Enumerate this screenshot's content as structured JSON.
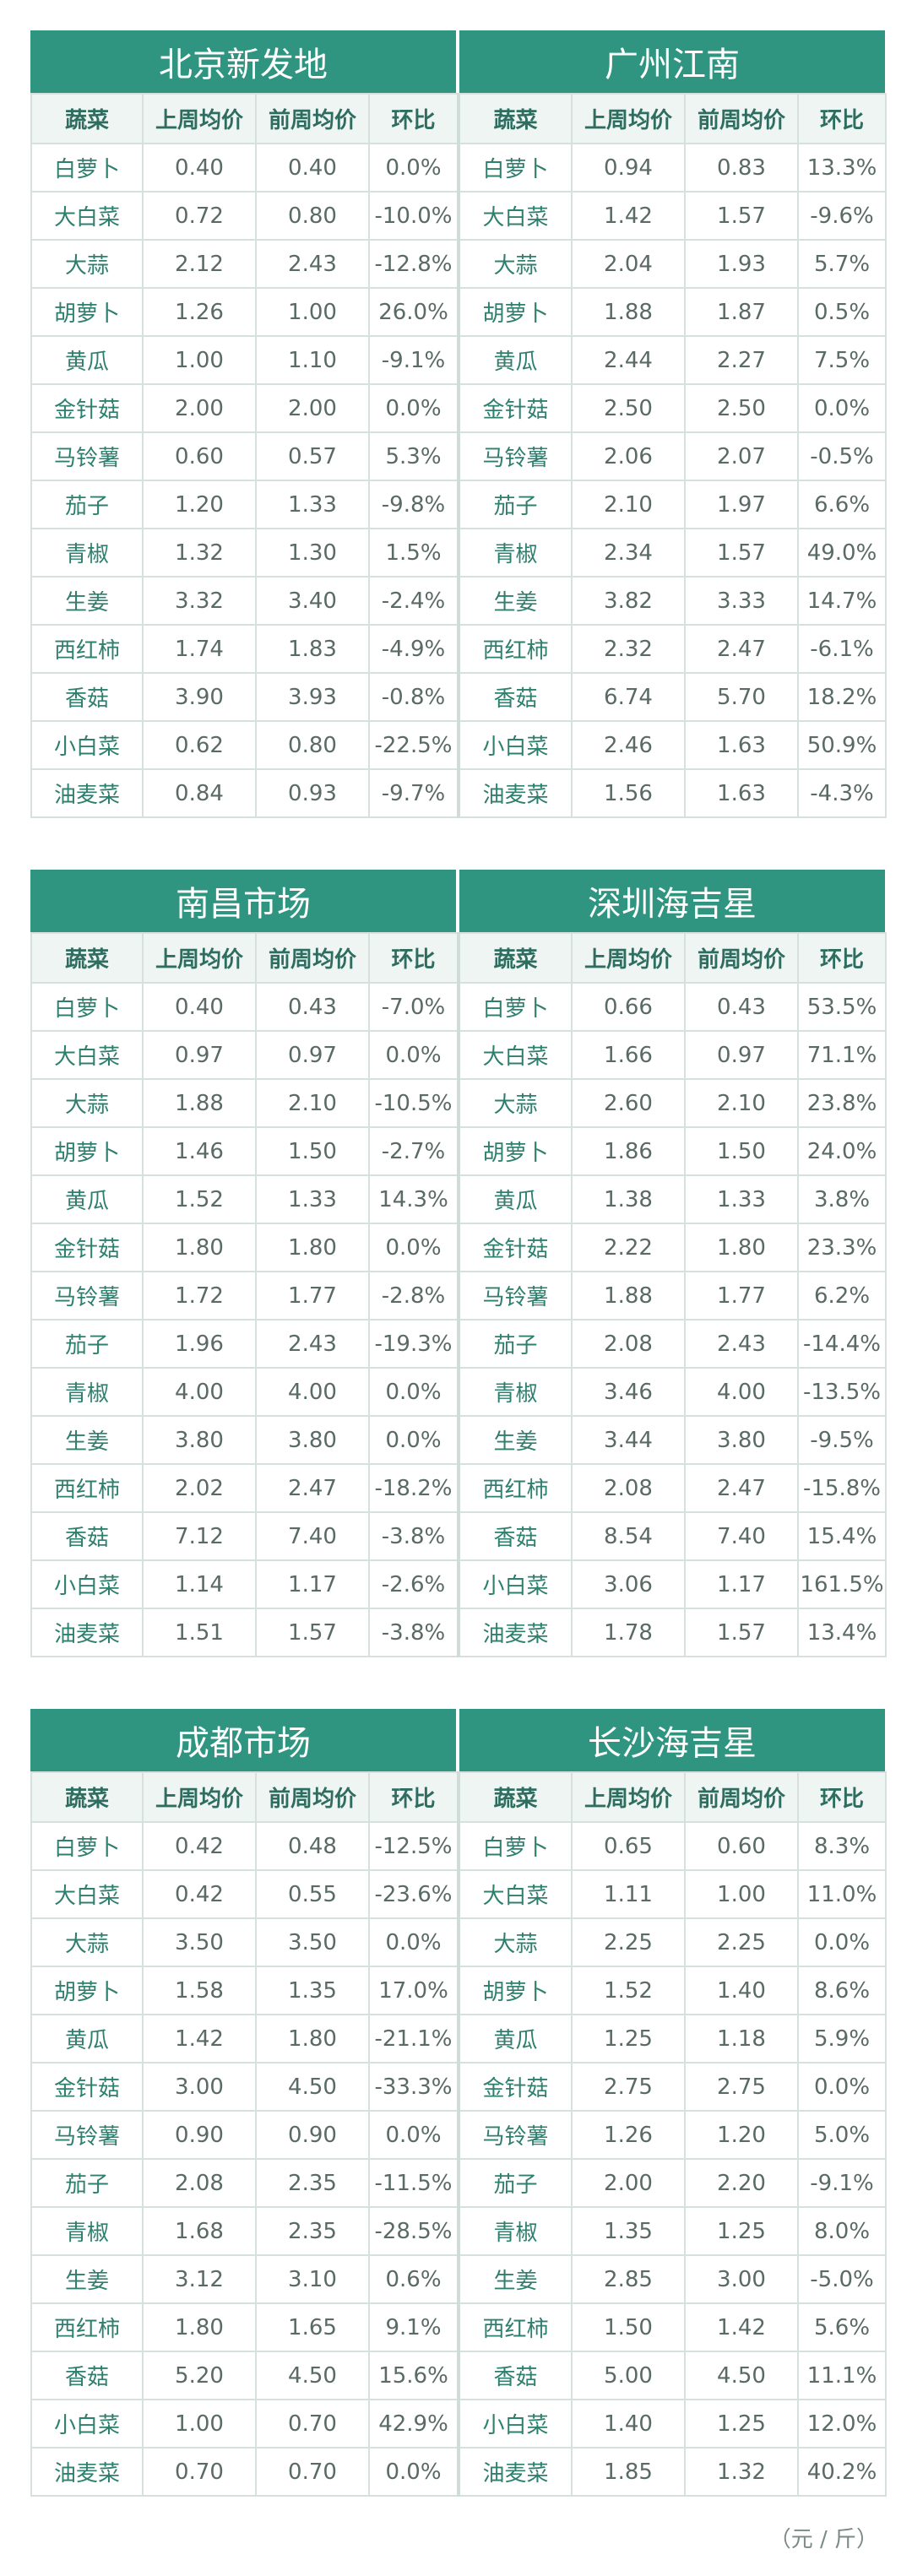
{
  "columns": [
    "蔬菜",
    "上周均价",
    "前周均价",
    "环比"
  ],
  "sections": [
    {
      "left": {
        "market": "北京新发地",
        "rows": [
          [
            "白萝卜",
            "0.40",
            "0.40",
            "0.0%"
          ],
          [
            "大白菜",
            "0.72",
            "0.80",
            "-10.0%"
          ],
          [
            "大蒜",
            "2.12",
            "2.43",
            "-12.8%"
          ],
          [
            "胡萝卜",
            "1.26",
            "1.00",
            "26.0%"
          ],
          [
            "黄瓜",
            "1.00",
            "1.10",
            "-9.1%"
          ],
          [
            "金针菇",
            "2.00",
            "2.00",
            "0.0%"
          ],
          [
            "马铃薯",
            "0.60",
            "0.57",
            "5.3%"
          ],
          [
            "茄子",
            "1.20",
            "1.33",
            "-9.8%"
          ],
          [
            "青椒",
            "1.32",
            "1.30",
            "1.5%"
          ],
          [
            "生姜",
            "3.32",
            "3.40",
            "-2.4%"
          ],
          [
            "西红柿",
            "1.74",
            "1.83",
            "-4.9%"
          ],
          [
            "香菇",
            "3.90",
            "3.93",
            "-0.8%"
          ],
          [
            "小白菜",
            "0.62",
            "0.80",
            "-22.5%"
          ],
          [
            "油麦菜",
            "0.84",
            "0.93",
            "-9.7%"
          ]
        ]
      },
      "right": {
        "market": "广州江南",
        "rows": [
          [
            "白萝卜",
            "0.94",
            "0.83",
            "13.3%"
          ],
          [
            "大白菜",
            "1.42",
            "1.57",
            "-9.6%"
          ],
          [
            "大蒜",
            "2.04",
            "1.93",
            "5.7%"
          ],
          [
            "胡萝卜",
            "1.88",
            "1.87",
            "0.5%"
          ],
          [
            "黄瓜",
            "2.44",
            "2.27",
            "7.5%"
          ],
          [
            "金针菇",
            "2.50",
            "2.50",
            "0.0%"
          ],
          [
            "马铃薯",
            "2.06",
            "2.07",
            "-0.5%"
          ],
          [
            "茄子",
            "2.10",
            "1.97",
            "6.6%"
          ],
          [
            "青椒",
            "2.34",
            "1.57",
            "49.0%"
          ],
          [
            "生姜",
            "3.82",
            "3.33",
            "14.7%"
          ],
          [
            "西红柿",
            "2.32",
            "2.47",
            "-6.1%"
          ],
          [
            "香菇",
            "6.74",
            "5.70",
            "18.2%"
          ],
          [
            "小白菜",
            "2.46",
            "1.63",
            "50.9%"
          ],
          [
            "油麦菜",
            "1.56",
            "1.63",
            "-4.3%"
          ]
        ]
      }
    },
    {
      "left": {
        "market": "南昌市场",
        "rows": [
          [
            "白萝卜",
            "0.40",
            "0.43",
            "-7.0%"
          ],
          [
            "大白菜",
            "0.97",
            "0.97",
            "0.0%"
          ],
          [
            "大蒜",
            "1.88",
            "2.10",
            "-10.5%"
          ],
          [
            "胡萝卜",
            "1.46",
            "1.50",
            "-2.7%"
          ],
          [
            "黄瓜",
            "1.52",
            "1.33",
            "14.3%"
          ],
          [
            "金针菇",
            "1.80",
            "1.80",
            "0.0%"
          ],
          [
            "马铃薯",
            "1.72",
            "1.77",
            "-2.8%"
          ],
          [
            "茄子",
            "1.96",
            "2.43",
            "-19.3%"
          ],
          [
            "青椒",
            "4.00",
            "4.00",
            "0.0%"
          ],
          [
            "生姜",
            "3.80",
            "3.80",
            "0.0%"
          ],
          [
            "西红柿",
            "2.02",
            "2.47",
            "-18.2%"
          ],
          [
            "香菇",
            "7.12",
            "7.40",
            "-3.8%"
          ],
          [
            "小白菜",
            "1.14",
            "1.17",
            "-2.6%"
          ],
          [
            "油麦菜",
            "1.51",
            "1.57",
            "-3.8%"
          ]
        ]
      },
      "right": {
        "market": "深圳海吉星",
        "rows": [
          [
            "白萝卜",
            "0.66",
            "0.43",
            "53.5%"
          ],
          [
            "大白菜",
            "1.66",
            "0.97",
            "71.1%"
          ],
          [
            "大蒜",
            "2.60",
            "2.10",
            "23.8%"
          ],
          [
            "胡萝卜",
            "1.86",
            "1.50",
            "24.0%"
          ],
          [
            "黄瓜",
            "1.38",
            "1.33",
            "3.8%"
          ],
          [
            "金针菇",
            "2.22",
            "1.80",
            "23.3%"
          ],
          [
            "马铃薯",
            "1.88",
            "1.77",
            "6.2%"
          ],
          [
            "茄子",
            "2.08",
            "2.43",
            "-14.4%"
          ],
          [
            "青椒",
            "3.46",
            "4.00",
            "-13.5%"
          ],
          [
            "生姜",
            "3.44",
            "3.80",
            "-9.5%"
          ],
          [
            "西红柿",
            "2.08",
            "2.47",
            "-15.8%"
          ],
          [
            "香菇",
            "8.54",
            "7.40",
            "15.4%"
          ],
          [
            "小白菜",
            "3.06",
            "1.17",
            "161.5%"
          ],
          [
            "油麦菜",
            "1.78",
            "1.57",
            "13.4%"
          ]
        ]
      }
    },
    {
      "left": {
        "market": "成都市场",
        "rows": [
          [
            "白萝卜",
            "0.42",
            "0.48",
            "-12.5%"
          ],
          [
            "大白菜",
            "0.42",
            "0.55",
            "-23.6%"
          ],
          [
            "大蒜",
            "3.50",
            "3.50",
            "0.0%"
          ],
          [
            "胡萝卜",
            "1.58",
            "1.35",
            "17.0%"
          ],
          [
            "黄瓜",
            "1.42",
            "1.80",
            "-21.1%"
          ],
          [
            "金针菇",
            "3.00",
            "4.50",
            "-33.3%"
          ],
          [
            "马铃薯",
            "0.90",
            "0.90",
            "0.0%"
          ],
          [
            "茄子",
            "2.08",
            "2.35",
            "-11.5%"
          ],
          [
            "青椒",
            "1.68",
            "2.35",
            "-28.5%"
          ],
          [
            "生姜",
            "3.12",
            "3.10",
            "0.6%"
          ],
          [
            "西红柿",
            "1.80",
            "1.65",
            "9.1%"
          ],
          [
            "香菇",
            "5.20",
            "4.50",
            "15.6%"
          ],
          [
            "小白菜",
            "1.00",
            "0.70",
            "42.9%"
          ],
          [
            "油麦菜",
            "0.70",
            "0.70",
            "0.0%"
          ]
        ]
      },
      "right": {
        "market": "长沙海吉星",
        "rows": [
          [
            "白萝卜",
            "0.65",
            "0.60",
            "8.3%"
          ],
          [
            "大白菜",
            "1.11",
            "1.00",
            "11.0%"
          ],
          [
            "大蒜",
            "2.25",
            "2.25",
            "0.0%"
          ],
          [
            "胡萝卜",
            "1.52",
            "1.40",
            "8.6%"
          ],
          [
            "黄瓜",
            "1.25",
            "1.18",
            "5.9%"
          ],
          [
            "金针菇",
            "2.75",
            "2.75",
            "0.0%"
          ],
          [
            "马铃薯",
            "1.26",
            "1.20",
            "5.0%"
          ],
          [
            "茄子",
            "2.00",
            "2.20",
            "-9.1%"
          ],
          [
            "青椒",
            "1.35",
            "1.25",
            "8.0%"
          ],
          [
            "生姜",
            "2.85",
            "3.00",
            "-5.0%"
          ],
          [
            "西红柿",
            "1.50",
            "1.42",
            "5.6%"
          ],
          [
            "香菇",
            "5.00",
            "4.50",
            "11.1%"
          ],
          [
            "小白菜",
            "1.40",
            "1.25",
            "12.0%"
          ],
          [
            "油麦菜",
            "1.85",
            "1.32",
            "40.2%"
          ]
        ]
      }
    }
  ],
  "unit_note": "（元 / 斤）",
  "colors": {
    "header": "#2f9581",
    "column_header_bg": "#eef5f3",
    "border": "#d6e0dd"
  }
}
